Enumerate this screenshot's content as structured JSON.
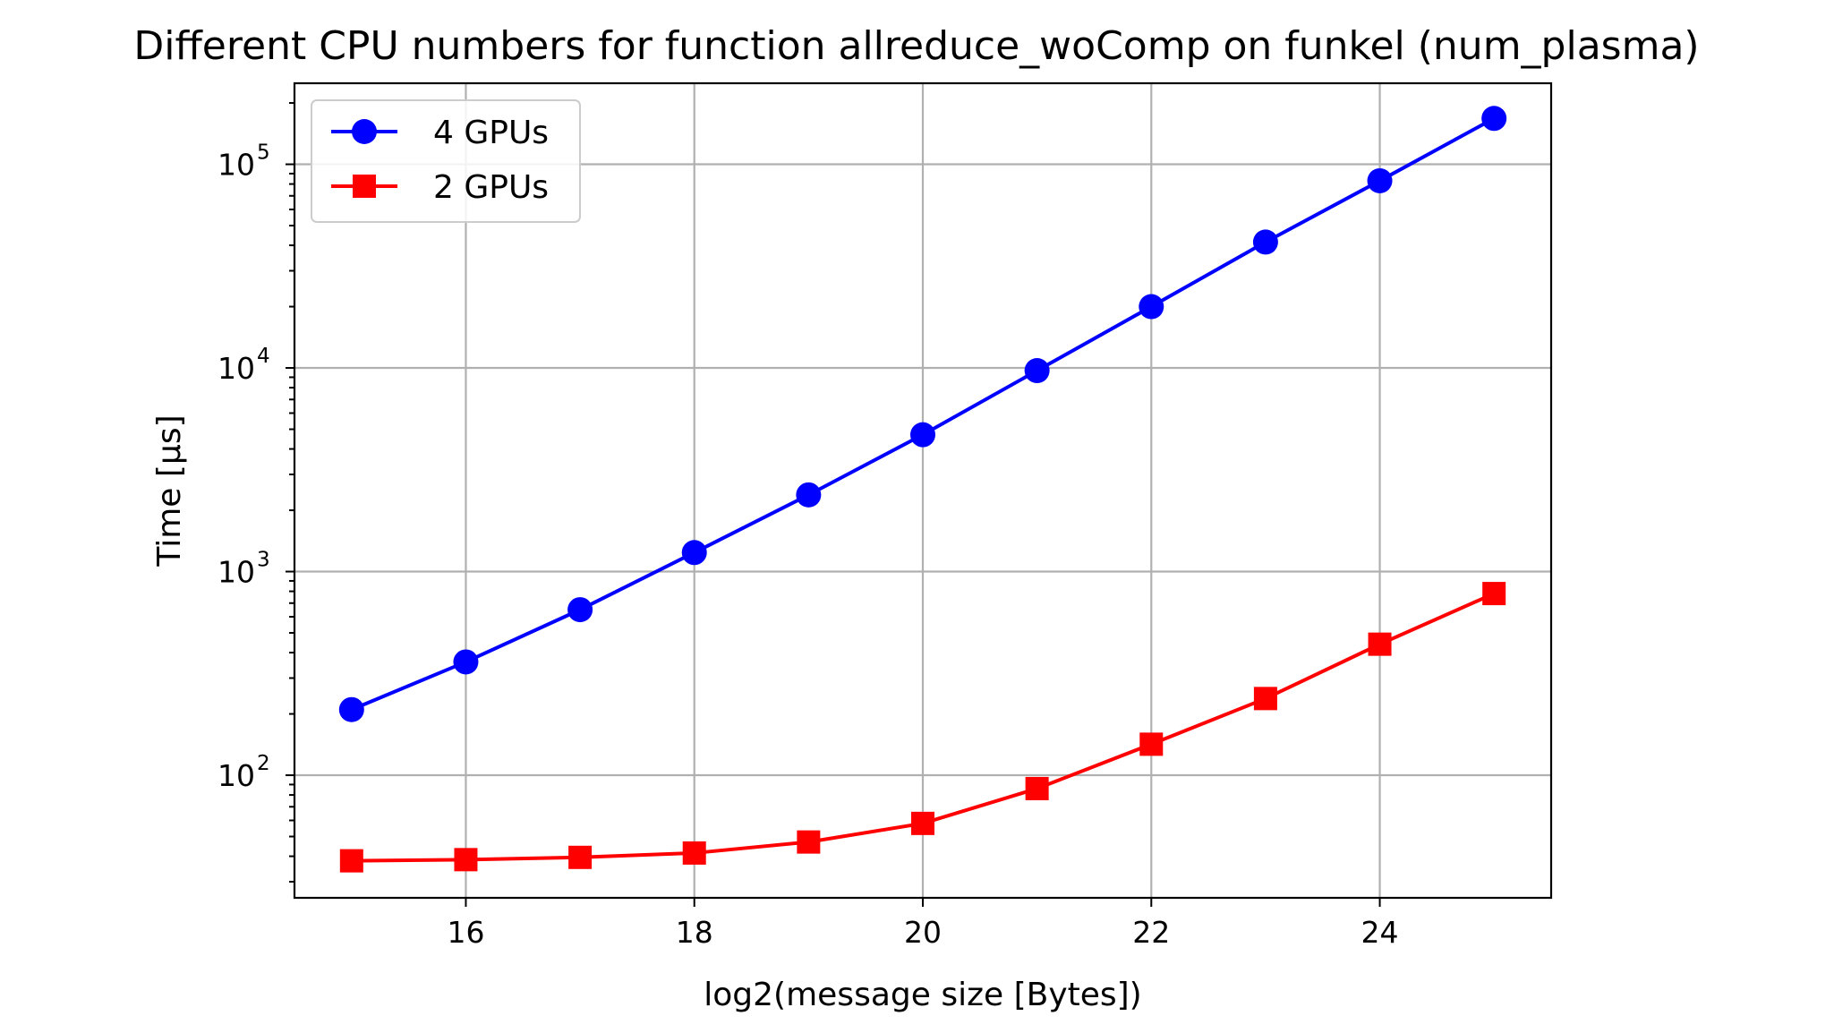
{
  "chart_data": {
    "type": "line",
    "title": "Different CPU numbers for function allreduce_woComp on funkel (num_plasma)",
    "xlabel": "log2(message size [Bytes])",
    "ylabel": "Time [µs]",
    "xlim": [
      14.5,
      25.5
    ],
    "ylim": [
      25,
      250000
    ],
    "yscale": "log",
    "grid": true,
    "legend_position": "upper-left",
    "x_ticks": [
      16,
      18,
      20,
      22,
      24
    ],
    "y_ticks": [
      {
        "value": 100,
        "base": "10",
        "exp": "2"
      },
      {
        "value": 1000,
        "base": "10",
        "exp": "3"
      },
      {
        "value": 10000,
        "base": "10",
        "exp": "4"
      },
      {
        "value": 100000,
        "base": "10",
        "exp": "5"
      }
    ],
    "x": [
      15,
      16,
      17,
      18,
      19,
      20,
      21,
      22,
      23,
      24,
      25
    ],
    "series": [
      {
        "name": "4 GPUs",
        "color": "#0000ff",
        "marker": "circle",
        "values": [
          210,
          360,
          650,
          1240,
          2380,
          4700,
          9700,
          20000,
          41500,
          83000,
          168000
        ]
      },
      {
        "name": "2 GPUs",
        "color": "#ff0000",
        "marker": "square",
        "values": [
          38,
          38.5,
          39.5,
          41.5,
          47,
          58,
          86,
          142,
          238,
          440,
          780
        ]
      }
    ]
  }
}
